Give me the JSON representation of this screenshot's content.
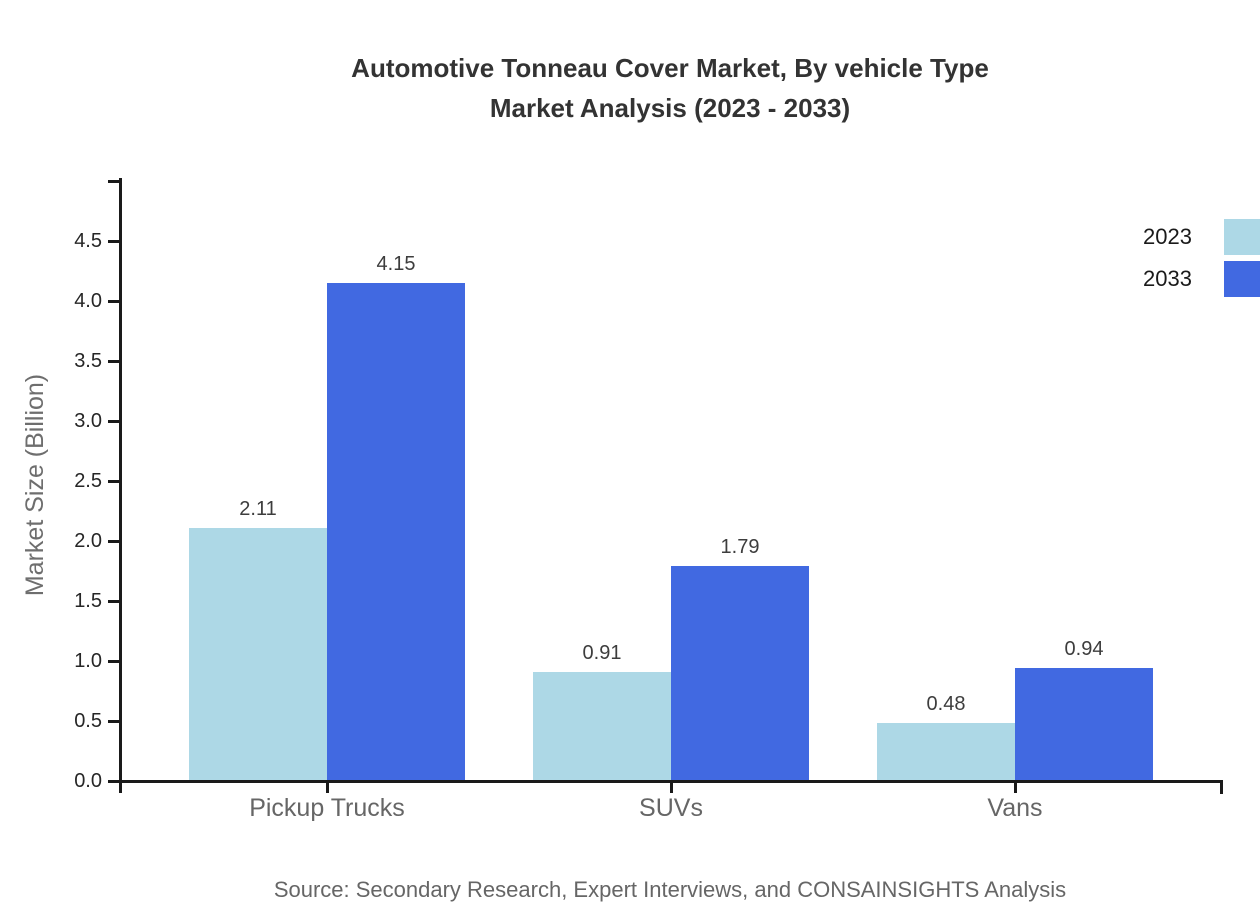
{
  "title": {
    "line1": "Automotive Tonneau Cover Market, By vehicle Type",
    "line2": "Market Analysis (2023 - 2033)"
  },
  "chart_data": {
    "type": "bar",
    "categories": [
      "Pickup Trucks",
      "SUVs",
      "Vans"
    ],
    "series": [
      {
        "name": "2023",
        "color": "#ADD8E6",
        "values": [
          2.11,
          0.91,
          0.48
        ]
      },
      {
        "name": "2033",
        "color": "#4169E1",
        "values": [
          4.15,
          1.79,
          0.94
        ]
      }
    ],
    "title": "Automotive Tonneau Cover Market, By vehicle Type Market Analysis (2023 - 2033)",
    "xlabel": "",
    "ylabel": "Market Size (Billion)",
    "ylim": [
      0,
      5
    ],
    "yticks": [
      0.0,
      0.5,
      1.0,
      1.5,
      2.0,
      2.5,
      3.0,
      3.5,
      4.0,
      4.5
    ],
    "grid": false,
    "legend_position": "top-right",
    "value_labels": true
  },
  "source": "Source: Secondary Research, Expert Interviews, and CONSAINSIGHTS Analysis",
  "colors": {
    "series_2023": "#ADD8E6",
    "series_2033": "#4169E1",
    "axis": "#1a1a1a",
    "title_text": "#333333",
    "value_label_text": "#3d3d3d",
    "muted_text": "#666666"
  }
}
